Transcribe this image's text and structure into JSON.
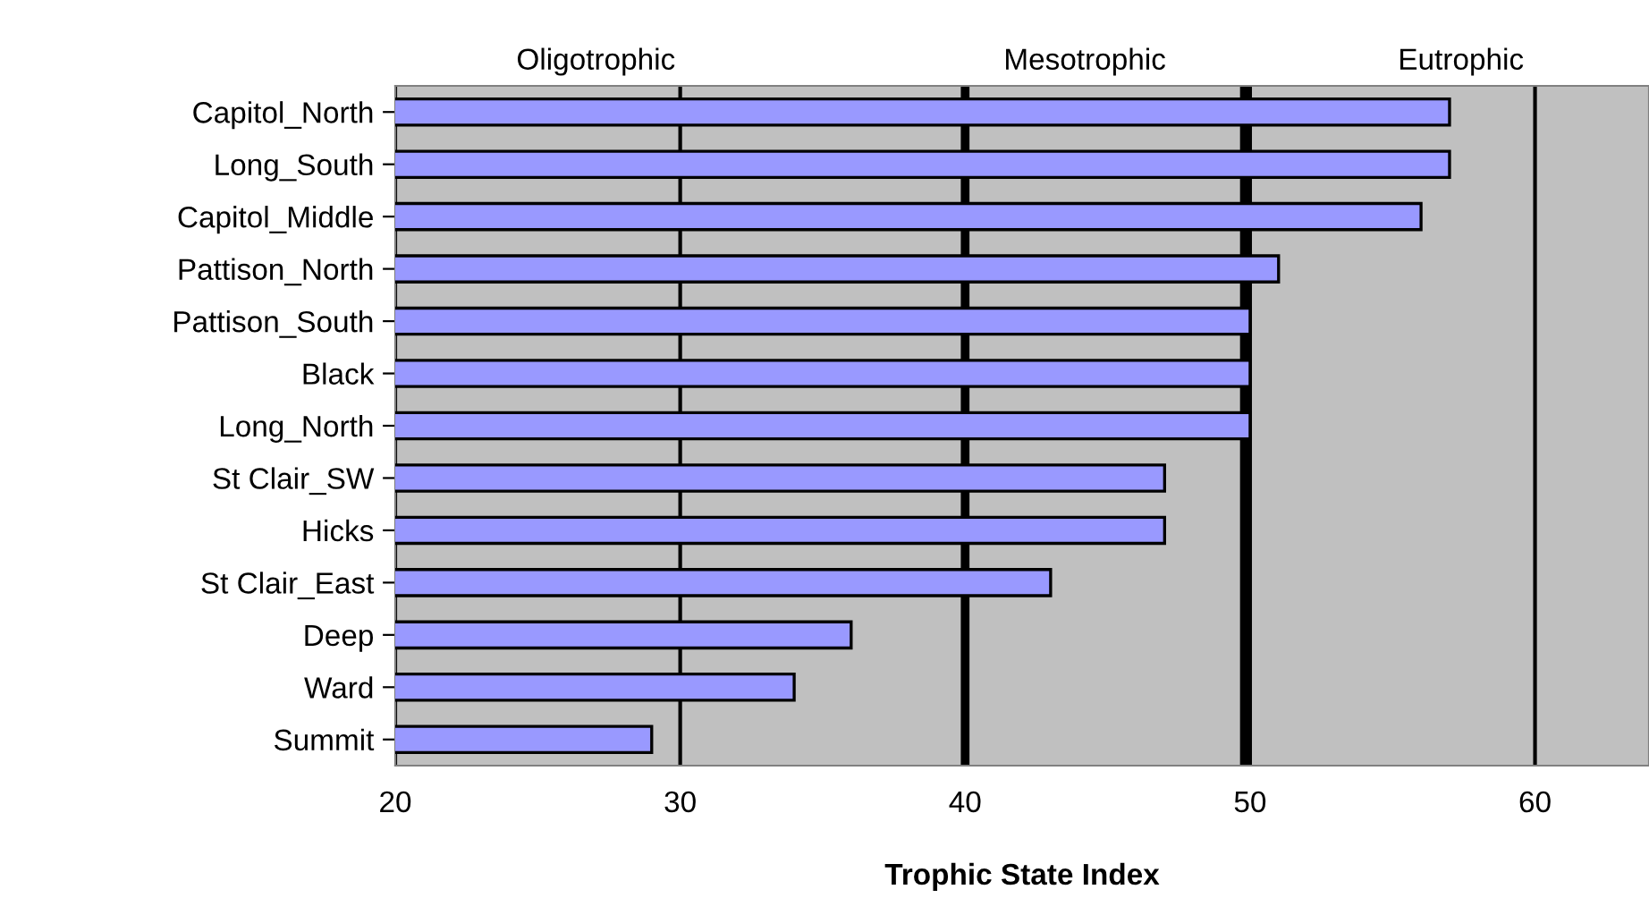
{
  "chart_data": {
    "type": "bar",
    "orientation": "horizontal",
    "xlabel": "Trophic State Index",
    "categories": [
      "Capitol_North",
      "Long_South",
      "Capitol_Middle",
      "Pattison_North",
      "Pattison_South",
      "Black",
      "Long_North",
      "St Clair_SW",
      "Hicks",
      "St Clair_East",
      "Deep",
      "Ward",
      "Summit"
    ],
    "series": [
      {
        "color": "#9999ff",
        "values": [
          57,
          57,
          56,
          51,
          50,
          50,
          50,
          47,
          47,
          43,
          36,
          34,
          29
        ]
      }
    ],
    "xlim": [
      20,
      64
    ],
    "xticks": [
      20,
      30,
      40,
      50,
      60
    ],
    "grid": "x",
    "ref_lines": [
      {
        "axis": "x",
        "value": 40,
        "color": "#000000"
      },
      {
        "axis": "x",
        "value": 49.8,
        "color": "#000000"
      }
    ],
    "annotations": [
      "Oligotrophic",
      "Mesotrophic",
      "Eutrophic"
    ]
  }
}
